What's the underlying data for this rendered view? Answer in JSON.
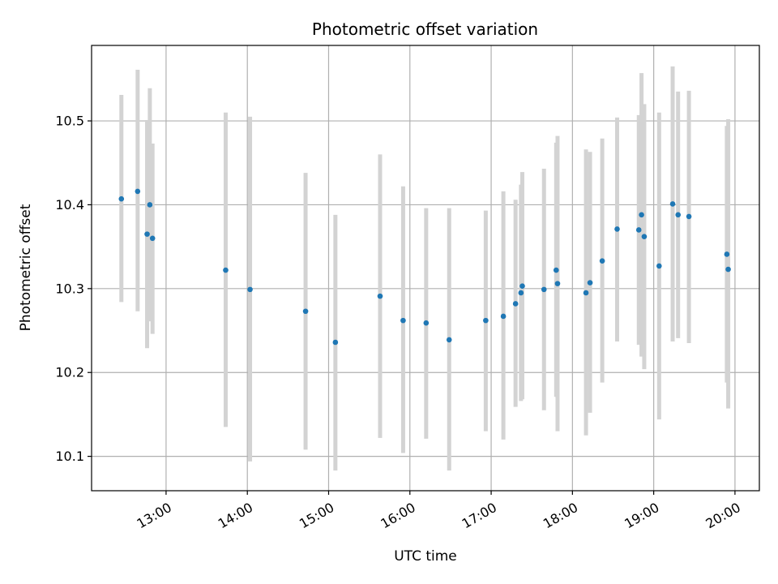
{
  "chart_data": {
    "type": "scatter",
    "title": "Photometric offset variation",
    "xlabel": "UTC time",
    "ylabel": "Photometric offset",
    "x_is_time": true,
    "xlim": [
      "12:05",
      "20:18"
    ],
    "ylim": [
      10.059,
      10.59
    ],
    "x_ticks": [
      "13:00",
      "14:00",
      "15:00",
      "16:00",
      "17:00",
      "18:00",
      "19:00",
      "20:00"
    ],
    "y_ticks": [
      10.1,
      10.2,
      10.3,
      10.4,
      10.5
    ],
    "y_tick_labels": [
      "10.1",
      "10.2",
      "10.3",
      "10.4",
      "10.5"
    ],
    "grid": true,
    "colors": {
      "point": "#1f77b4",
      "errorbar": "#d3d3d3",
      "grid": "#b0b0b0"
    },
    "series": [
      {
        "points": [
          {
            "x": "12:27",
            "y": 10.407,
            "lo": 10.284,
            "hi": 10.531
          },
          {
            "x": "12:39",
            "y": 10.416,
            "lo": 10.273,
            "hi": 10.561
          },
          {
            "x": "12:46",
            "y": 10.365,
            "lo": 10.229,
            "hi": 10.501
          },
          {
            "x": "12:48",
            "y": 10.4,
            "lo": 10.261,
            "hi": 10.539
          },
          {
            "x": "12:50",
            "y": 10.36,
            "lo": 10.246,
            "hi": 10.473
          },
          {
            "x": "13:44",
            "y": 10.322,
            "lo": 10.135,
            "hi": 10.51
          },
          {
            "x": "14:02",
            "y": 10.299,
            "lo": 10.094,
            "hi": 10.505
          },
          {
            "x": "14:43",
            "y": 10.273,
            "lo": 10.108,
            "hi": 10.438
          },
          {
            "x": "15:05",
            "y": 10.236,
            "lo": 10.083,
            "hi": 10.388
          },
          {
            "x": "15:38",
            "y": 10.291,
            "lo": 10.122,
            "hi": 10.46
          },
          {
            "x": "15:55",
            "y": 10.262,
            "lo": 10.104,
            "hi": 10.422
          },
          {
            "x": "16:12",
            "y": 10.259,
            "lo": 10.121,
            "hi": 10.396
          },
          {
            "x": "16:29",
            "y": 10.239,
            "lo": 10.083,
            "hi": 10.396
          },
          {
            "x": "16:56",
            "y": 10.262,
            "lo": 10.13,
            "hi": 10.393
          },
          {
            "x": "17:09",
            "y": 10.267,
            "lo": 10.12,
            "hi": 10.416
          },
          {
            "x": "17:18",
            "y": 10.282,
            "lo": 10.159,
            "hi": 10.406
          },
          {
            "x": "17:22",
            "y": 10.295,
            "lo": 10.166,
            "hi": 10.424
          },
          {
            "x": "17:23",
            "y": 10.303,
            "lo": 10.168,
            "hi": 10.439
          },
          {
            "x": "17:39",
            "y": 10.299,
            "lo": 10.155,
            "hi": 10.443
          },
          {
            "x": "17:48",
            "y": 10.322,
            "lo": 10.171,
            "hi": 10.474
          },
          {
            "x": "17:49",
            "y": 10.306,
            "lo": 10.13,
            "hi": 10.482
          },
          {
            "x": "18:10",
            "y": 10.295,
            "lo": 10.125,
            "hi": 10.466
          },
          {
            "x": "18:13",
            "y": 10.307,
            "lo": 10.152,
            "hi": 10.463
          },
          {
            "x": "18:22",
            "y": 10.333,
            "lo": 10.188,
            "hi": 10.479
          },
          {
            "x": "18:33",
            "y": 10.371,
            "lo": 10.237,
            "hi": 10.504
          },
          {
            "x": "18:49",
            "y": 10.37,
            "lo": 10.233,
            "hi": 10.507
          },
          {
            "x": "18:51",
            "y": 10.388,
            "lo": 10.219,
            "hi": 10.557
          },
          {
            "x": "18:53",
            "y": 10.362,
            "lo": 10.204,
            "hi": 10.52
          },
          {
            "x": "19:04",
            "y": 10.327,
            "lo": 10.144,
            "hi": 10.51
          },
          {
            "x": "19:14",
            "y": 10.401,
            "lo": 10.237,
            "hi": 10.565
          },
          {
            "x": "19:18",
            "y": 10.388,
            "lo": 10.241,
            "hi": 10.535
          },
          {
            "x": "19:26",
            "y": 10.386,
            "lo": 10.235,
            "hi": 10.536
          },
          {
            "x": "19:54",
            "y": 10.341,
            "lo": 10.188,
            "hi": 10.494
          },
          {
            "x": "19:55",
            "y": 10.323,
            "lo": 10.157,
            "hi": 10.502
          }
        ]
      }
    ]
  }
}
